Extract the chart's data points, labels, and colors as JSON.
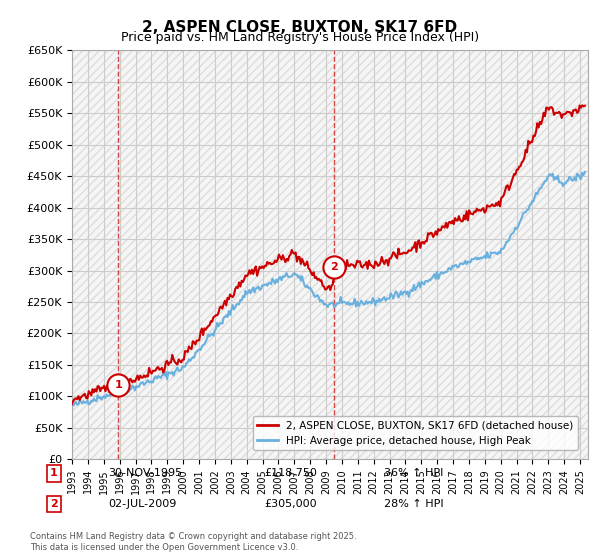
{
  "title": "2, ASPEN CLOSE, BUXTON, SK17 6FD",
  "subtitle": "Price paid vs. HM Land Registry's House Price Index (HPI)",
  "ylabel_ticks": [
    "£0",
    "£50K",
    "£100K",
    "£150K",
    "£200K",
    "£250K",
    "£300K",
    "£350K",
    "£400K",
    "£450K",
    "£500K",
    "£550K",
    "£600K",
    "£650K"
  ],
  "ylim": [
    0,
    650000
  ],
  "xlim_start": 1993.0,
  "xlim_end": 2025.5,
  "hpi_color": "#6ab0de",
  "price_color": "#cc0000",
  "transactions": [
    {
      "date": 1995.92,
      "price": 118750,
      "label": "1"
    },
    {
      "date": 2009.5,
      "price": 305000,
      "label": "2"
    }
  ],
  "legend_line1": "2, ASPEN CLOSE, BUXTON, SK17 6FD (detached house)",
  "legend_line2": "HPI: Average price, detached house, High Peak",
  "annotations": [
    {
      "num": "1",
      "date": "30-NOV-1995",
      "price": "£118,750",
      "hpi": "36% ↑ HPI"
    },
    {
      "num": "2",
      "date": "02-JUL-2009",
      "price": "£305,000",
      "hpi": "28% ↑ HPI"
    }
  ],
  "footnote": "Contains HM Land Registry data © Crown copyright and database right 2025.\nThis data is licensed under the Open Government Licence v3.0.",
  "bg_color": "#ffffff",
  "grid_color": "#cccccc",
  "hatch_color": "#dddddd"
}
